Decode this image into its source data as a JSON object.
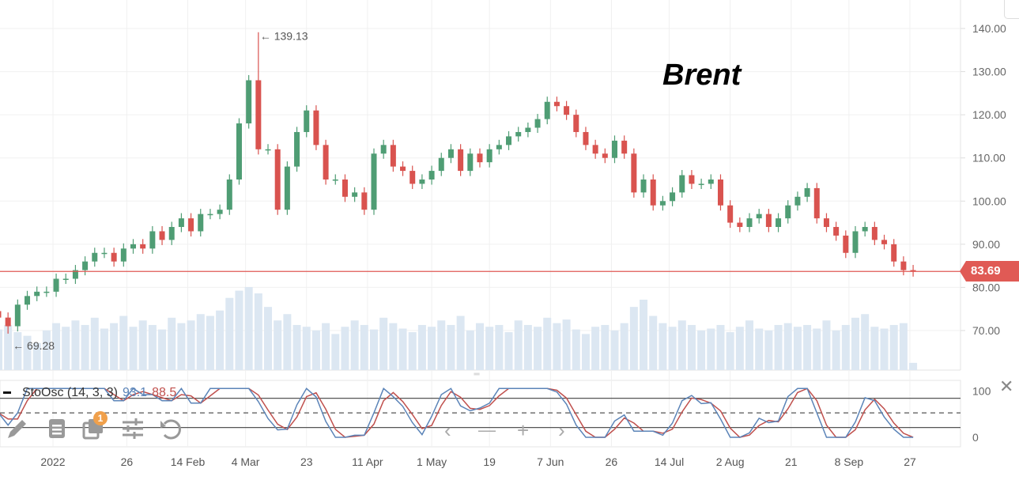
{
  "chart_data": {
    "type": "candlestick",
    "title": "Brent",
    "y_ticks": [
      "140.00",
      "130.00",
      "120.00",
      "110.00",
      "100.00",
      "90.00",
      "80.00",
      "70.00"
    ],
    "ylim": [
      60,
      145
    ],
    "x_ticks": [
      {
        "label": "2022",
        "date": "2022-01-03"
      },
      {
        "label": "26",
        "date": "2022-01-26"
      },
      {
        "label": "14 Feb",
        "date": "2022-02-14"
      },
      {
        "label": "4 Mar",
        "date": "2022-03-04"
      },
      {
        "label": "23",
        "date": "2022-03-23"
      },
      {
        "label": "11 Apr",
        "date": "2022-04-11"
      },
      {
        "label": "1 May",
        "date": "2022-05-01"
      },
      {
        "label": "19",
        "date": "2022-05-19"
      },
      {
        "label": "7 Jun",
        "date": "2022-06-07"
      },
      {
        "label": "26",
        "date": "2022-06-26"
      },
      {
        "label": "14 Jul",
        "date": "2022-07-14"
      },
      {
        "label": "2 Aug",
        "date": "2022-08-02"
      },
      {
        "label": "21",
        "date": "2022-08-21"
      },
      {
        "label": "8 Sep",
        "date": "2022-09-08"
      },
      {
        "label": "27",
        "date": "2022-09-27"
      }
    ],
    "dates": [
      "2021-12-17",
      "2021-12-20",
      "2021-12-23",
      "2021-12-26",
      "2021-12-29",
      "2022-01-01",
      "2022-01-04",
      "2022-01-07",
      "2022-01-10",
      "2022-01-13",
      "2022-01-16",
      "2022-01-19",
      "2022-01-22",
      "2022-01-25",
      "2022-01-28",
      "2022-01-31",
      "2022-02-03",
      "2022-02-06",
      "2022-02-09",
      "2022-02-12",
      "2022-02-15",
      "2022-02-18",
      "2022-02-21",
      "2022-02-24",
      "2022-02-27",
      "2022-03-02",
      "2022-03-05",
      "2022-03-08",
      "2022-03-11",
      "2022-03-14",
      "2022-03-17",
      "2022-03-20",
      "2022-03-23",
      "2022-03-26",
      "2022-03-29",
      "2022-04-01",
      "2022-04-04",
      "2022-04-07",
      "2022-04-10",
      "2022-04-13",
      "2022-04-16",
      "2022-04-19",
      "2022-04-22",
      "2022-04-25",
      "2022-04-28",
      "2022-05-01",
      "2022-05-04",
      "2022-05-07",
      "2022-05-10",
      "2022-05-13",
      "2022-05-16",
      "2022-05-19",
      "2022-05-22",
      "2022-05-25",
      "2022-05-28",
      "2022-05-31",
      "2022-06-03",
      "2022-06-06",
      "2022-06-09",
      "2022-06-12",
      "2022-06-15",
      "2022-06-18",
      "2022-06-21",
      "2022-06-24",
      "2022-06-27",
      "2022-06-30",
      "2022-07-03",
      "2022-07-06",
      "2022-07-09",
      "2022-07-12",
      "2022-07-15",
      "2022-07-18",
      "2022-07-21",
      "2022-07-24",
      "2022-07-27",
      "2022-07-30",
      "2022-08-02",
      "2022-08-05",
      "2022-08-08",
      "2022-08-11",
      "2022-08-14",
      "2022-08-17",
      "2022-08-20",
      "2022-08-23",
      "2022-08-26",
      "2022-08-29",
      "2022-09-01",
      "2022-09-04",
      "2022-09-07",
      "2022-09-10",
      "2022-09-13",
      "2022-09-16",
      "2022-09-19",
      "2022-09-22",
      "2022-09-25",
      "2022-09-28"
    ],
    "close": [
      73,
      71,
      76,
      78,
      79,
      79,
      82,
      82,
      84,
      86,
      88,
      88,
      86,
      89,
      90,
      89,
      93,
      91,
      94,
      96,
      93,
      97,
      97,
      98,
      105,
      118,
      128,
      112,
      112,
      98,
      108,
      116,
      121,
      113,
      105,
      105,
      101,
      102,
      98,
      111,
      113,
      108,
      107,
      104,
      105,
      107,
      110,
      112,
      107,
      111,
      109,
      112,
      113,
      115,
      116,
      117,
      119,
      123,
      122,
      120,
      116,
      113,
      111,
      110,
      114,
      111,
      102,
      105,
      99,
      100,
      102,
      106,
      104,
      104,
      105,
      99,
      95,
      94,
      96,
      97,
      94,
      96,
      99,
      101,
      103,
      96,
      94,
      92,
      88,
      93,
      94,
      91,
      90,
      86,
      84,
      83.69
    ],
    "volume": [
      45,
      50,
      42,
      38,
      30,
      44,
      52,
      48,
      55,
      50,
      58,
      46,
      52,
      60,
      48,
      55,
      50,
      45,
      58,
      52,
      55,
      62,
      60,
      66,
      80,
      88,
      92,
      85,
      70,
      55,
      62,
      50,
      48,
      44,
      52,
      40,
      48,
      55,
      50,
      45,
      58,
      52,
      46,
      42,
      50,
      48,
      55,
      50,
      60,
      44,
      52,
      48,
      50,
      42,
      55,
      50,
      48,
      58,
      52,
      56,
      45,
      40,
      48,
      50,
      44,
      52,
      70,
      78,
      60,
      52,
      48,
      55,
      50,
      44,
      46,
      50,
      42,
      48,
      55,
      46,
      44,
      50,
      52,
      48,
      50,
      46,
      55,
      44,
      50,
      58,
      62,
      48,
      46,
      50,
      52,
      8
    ],
    "last_price": "83.69",
    "high_annotation": {
      "label": "139.13",
      "value": 139.13,
      "date": "2022-03-08"
    },
    "low_annotation": {
      "label": "69.28",
      "value": 69.28,
      "date": "2021-12-20"
    },
    "colors": {
      "up": "#4f9d74",
      "down": "#d9534f",
      "volume": "#dce7f2",
      "last_price": "#e05a55",
      "k_line": "#5b84b8",
      "d_line": "#c0504d"
    },
    "indicator": {
      "name": "StoOsc (14, 3, 3)",
      "k_value": "93.1",
      "d_value": "88.5",
      "y_ticks": [
        "100",
        "0"
      ],
      "levels": [
        80,
        50,
        20
      ]
    }
  },
  "toolbar": {
    "icons": [
      "pencil-icon",
      "document-icon",
      "layers-icon",
      "sliders-icon",
      "undo-icon"
    ],
    "badge": "1",
    "nav_icons": [
      "chevron-left-icon",
      "minus-icon",
      "plus-icon",
      "chevron-right-icon"
    ]
  }
}
